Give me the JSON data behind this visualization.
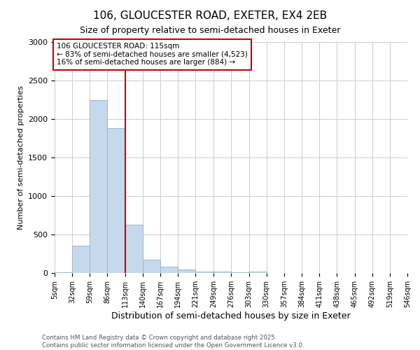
{
  "title_line1": "106, GLOUCESTER ROAD, EXETER, EX4 2EB",
  "title_line2": "Size of property relative to semi-detached houses in Exeter",
  "xlabel": "Distribution of semi-detached houses by size in Exeter",
  "ylabel": "Number of semi-detached properties",
  "property_label": "106 GLOUCESTER ROAD: 115sqm",
  "pct_smaller": 83,
  "count_smaller": 4523,
  "pct_larger": 16,
  "count_larger": 884,
  "bin_labels": [
    "5sqm",
    "32sqm",
    "59sqm",
    "86sqm",
    "113sqm",
    "140sqm",
    "167sqm",
    "194sqm",
    "221sqm",
    "249sqm",
    "276sqm",
    "303sqm",
    "330sqm",
    "357sqm",
    "384sqm",
    "411sqm",
    "438sqm",
    "465sqm",
    "492sqm",
    "519sqm",
    "546sqm"
  ],
  "bin_edges": [
    5,
    32,
    59,
    86,
    113,
    140,
    167,
    194,
    221,
    249,
    276,
    303,
    330,
    357,
    384,
    411,
    438,
    465,
    492,
    519,
    546
  ],
  "bar_heights": [
    10,
    355,
    2250,
    1880,
    625,
    175,
    80,
    45,
    20,
    15,
    5,
    20,
    0,
    0,
    0,
    0,
    0,
    0,
    0,
    0
  ],
  "bar_color": "#c6d9ec",
  "bar_edge_color": "#9ab5d0",
  "vline_color": "#cc0000",
  "vline_x": 113,
  "annotation_box_color": "#cc0000",
  "ylim": [
    0,
    3000
  ],
  "footnote_line1": "Contains HM Land Registry data © Crown copyright and database right 2025.",
  "footnote_line2": "Contains public sector information licensed under the Open Government Licence v3.0."
}
